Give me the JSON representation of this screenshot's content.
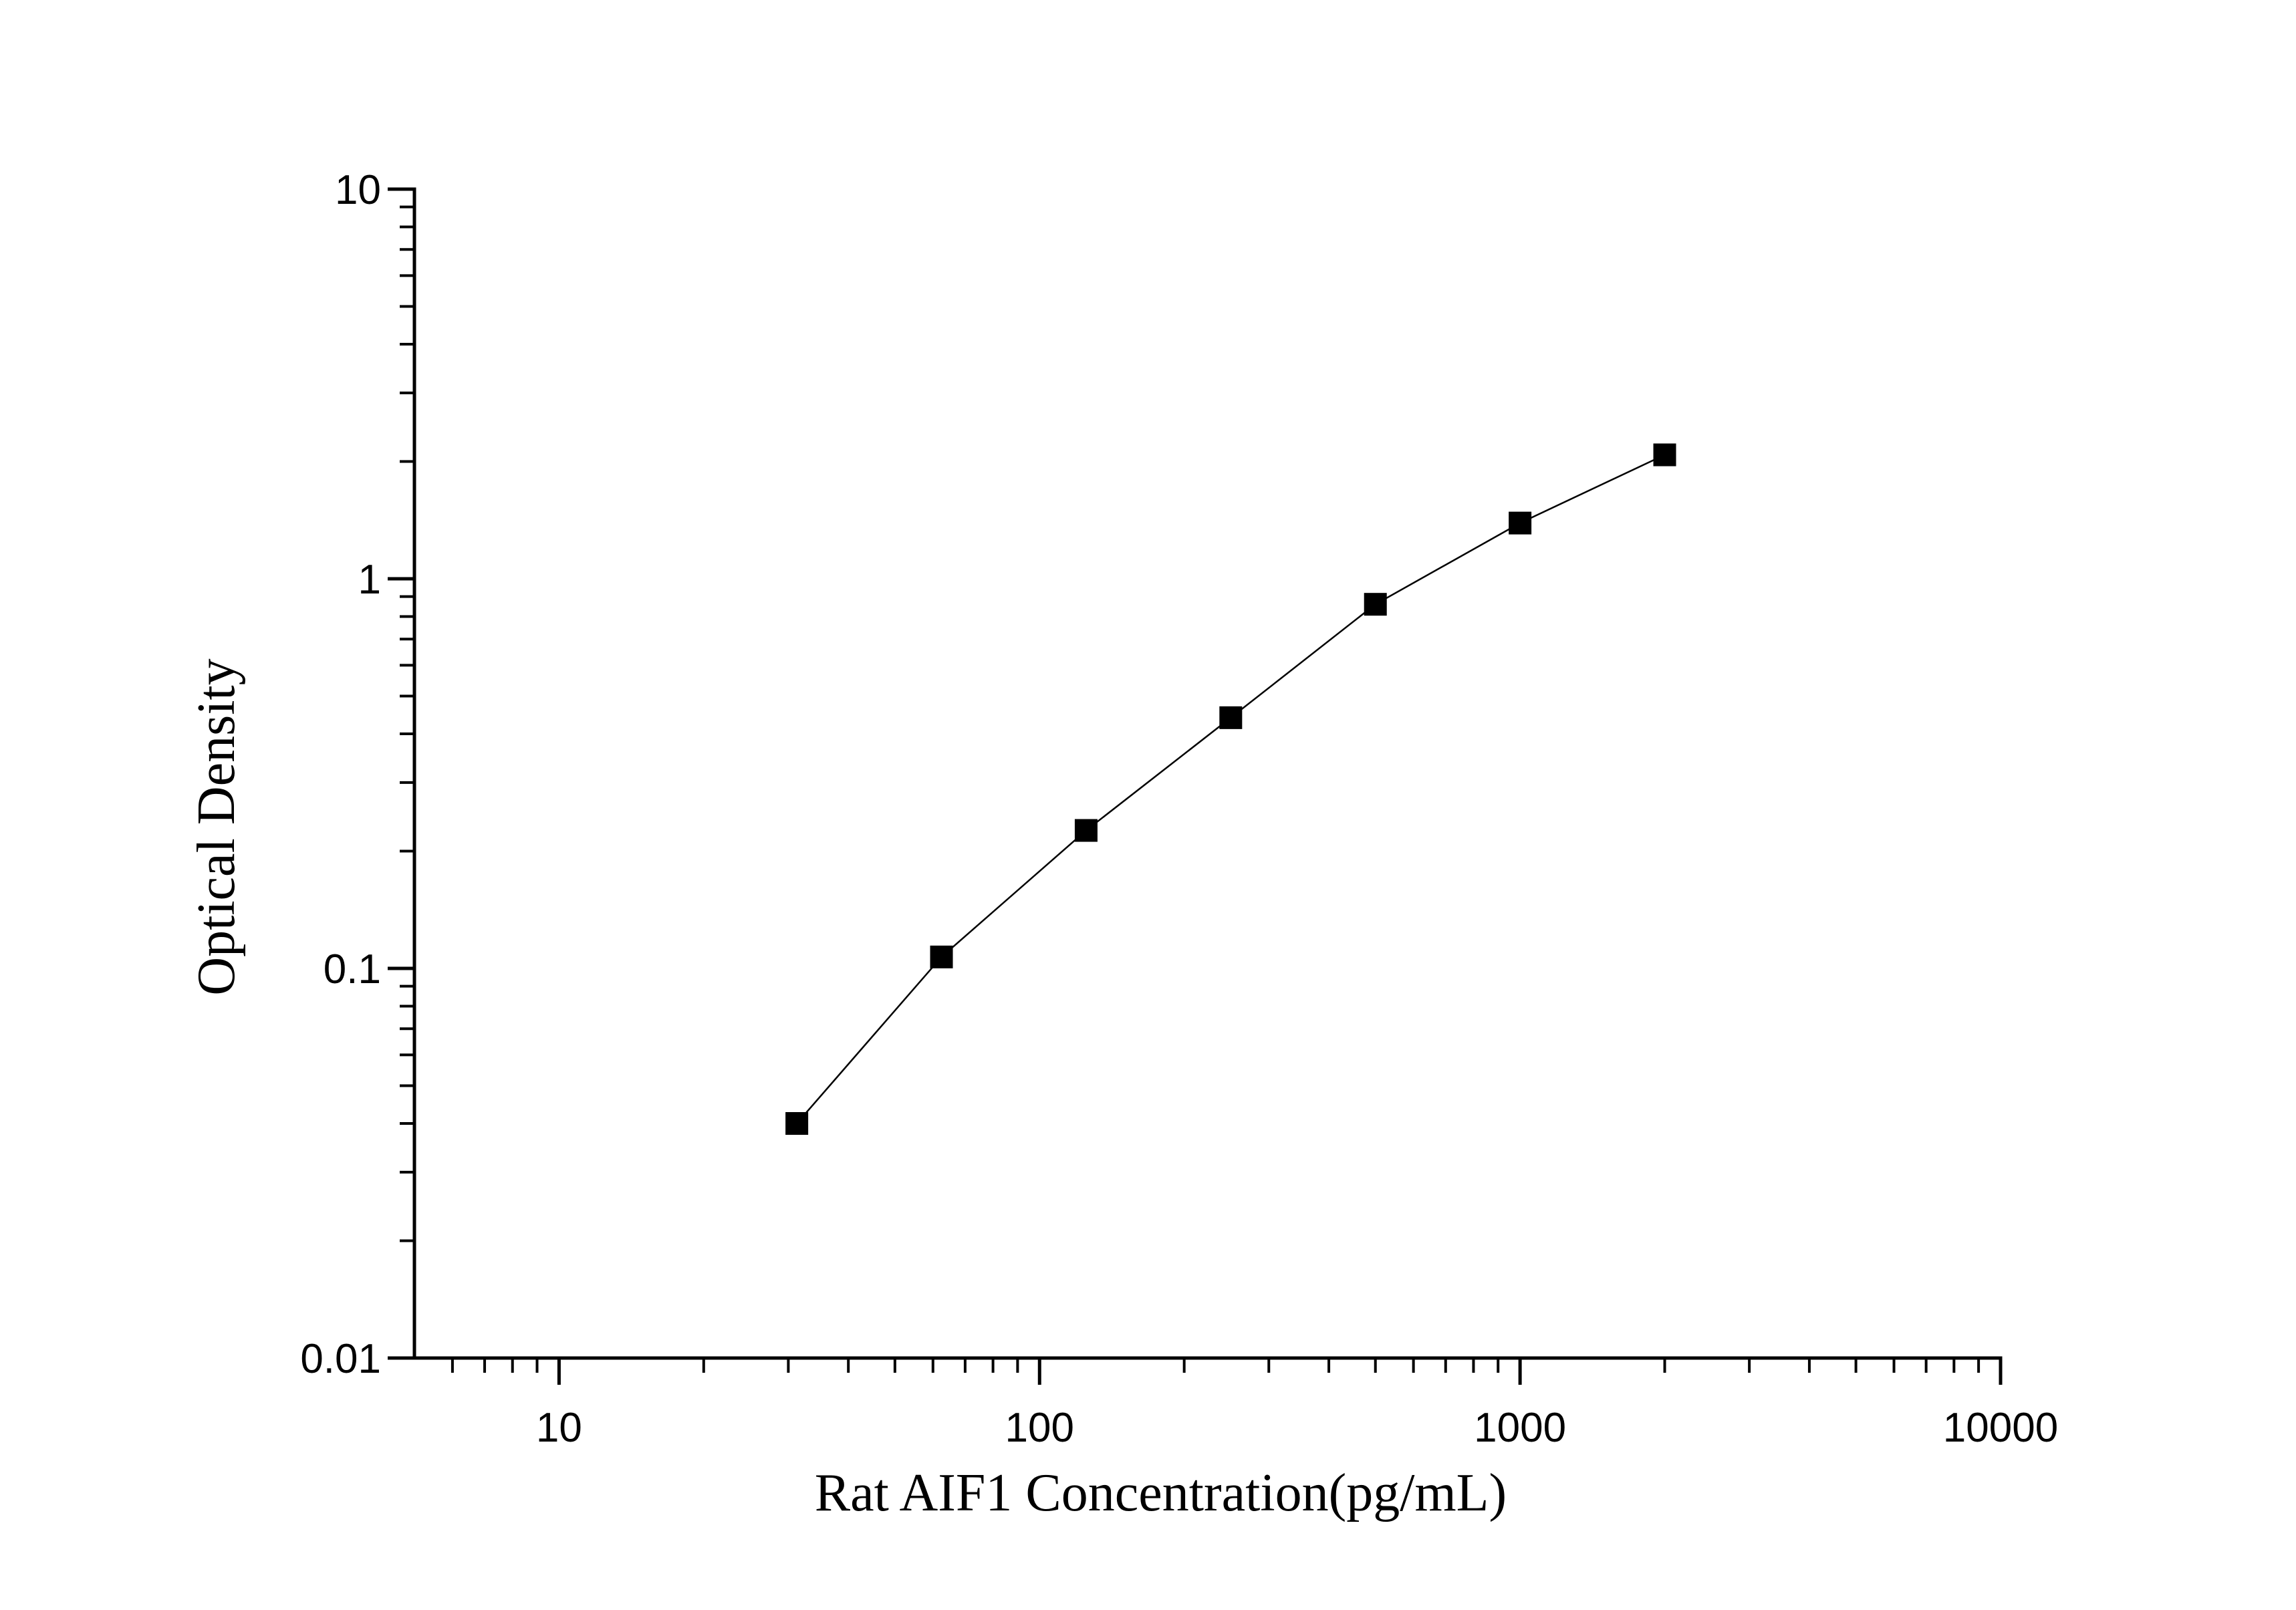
{
  "chart_data": {
    "type": "scatter",
    "title": "",
    "xlabel": "Rat AIF1 Concentration(pg/mL)",
    "ylabel": "Optical Density",
    "xscale": "log",
    "yscale": "log",
    "xlim": [
      5,
      10000
    ],
    "ylim": [
      0.01,
      10
    ],
    "grid": false,
    "legend": "none",
    "x_ticks": [
      {
        "value": 10,
        "label": "10"
      },
      {
        "value": 100,
        "label": "100"
      },
      {
        "value": 1000,
        "label": "1000"
      },
      {
        "value": 10000,
        "label": "10000"
      }
    ],
    "y_ticks": [
      {
        "value": 0.01,
        "label": "0.01"
      },
      {
        "value": 0.1,
        "label": "0.1"
      },
      {
        "value": 1,
        "label": "1"
      },
      {
        "value": 10,
        "label": "10"
      }
    ],
    "series": [
      {
        "marker": "square",
        "connected": true,
        "color": "#000000",
        "points": [
          {
            "x": 31.25,
            "y": 0.04
          },
          {
            "x": 62.5,
            "y": 0.107
          },
          {
            "x": 125,
            "y": 0.226
          },
          {
            "x": 250,
            "y": 0.44
          },
          {
            "x": 500,
            "y": 0.86
          },
          {
            "x": 1000,
            "y": 1.39
          },
          {
            "x": 2000,
            "y": 2.08
          }
        ]
      }
    ]
  }
}
